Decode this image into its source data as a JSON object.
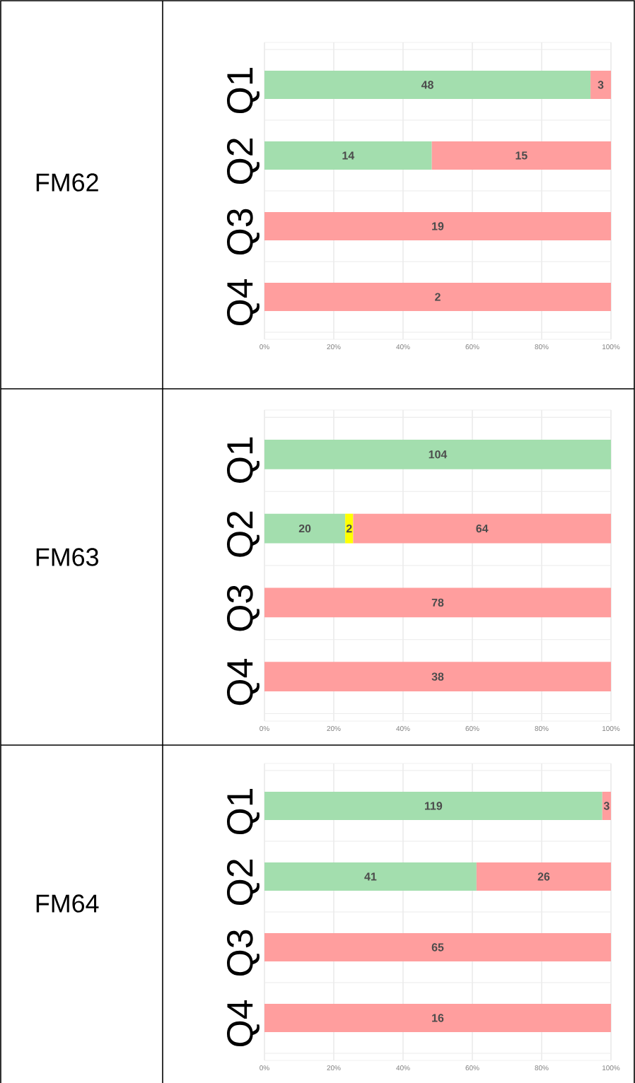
{
  "chart_data": [
    {
      "type": "bar",
      "orientation": "horizontal",
      "stacked": true,
      "title": "FM62",
      "categories": [
        "Q1",
        "Q2",
        "Q3",
        "Q4"
      ],
      "series": [
        {
          "color": "#a3deae",
          "values": [
            94.1,
            48.3,
            null,
            null
          ]
        },
        {
          "color": "#ff9e9e",
          "values": [
            5.9,
            51.7,
            100,
            100
          ]
        }
      ],
      "annotations": [
        "48",
        "3",
        "14",
        "15",
        "19",
        "2"
      ],
      "xlim": [
        0,
        100
      ],
      "xticks": [
        {
          "value": 0,
          "label": "0%"
        },
        {
          "value": 20,
          "label": "20%"
        },
        {
          "value": 40,
          "label": "40%"
        },
        {
          "value": 60,
          "label": "60%"
        },
        {
          "value": 80,
          "label": "80%"
        },
        {
          "value": 100,
          "label": "100%"
        }
      ],
      "grid": true
    },
    {
      "type": "bar",
      "orientation": "horizontal",
      "stacked": true,
      "title": "FM63",
      "categories": [
        "Q1",
        "Q2",
        "Q3",
        "Q4"
      ],
      "series": [
        {
          "color": "#a3deae",
          "values": [
            100,
            23.3,
            null,
            null
          ]
        },
        {
          "color": "#ffff00",
          "values": [
            null,
            2.3,
            null,
            null
          ]
        },
        {
          "color": "#ff9e9e",
          "values": [
            null,
            74.4,
            100,
            100
          ]
        }
      ],
      "annotations": [
        "104",
        "20",
        "2",
        "64",
        "78",
        "38"
      ],
      "xlim": [
        0,
        100
      ],
      "xticks": [
        {
          "value": 0,
          "label": "0%"
        },
        {
          "value": 20,
          "label": "20%"
        },
        {
          "value": 40,
          "label": "40%"
        },
        {
          "value": 60,
          "label": "60%"
        },
        {
          "value": 80,
          "label": "80%"
        },
        {
          "value": 100,
          "label": "100%"
        }
      ],
      "grid": true
    },
    {
      "type": "bar",
      "orientation": "horizontal",
      "stacked": true,
      "title": "FM64",
      "categories": [
        "Q1",
        "Q2",
        "Q3",
        "Q4"
      ],
      "series": [
        {
          "color": "#a3deae",
          "values": [
            97.5,
            61.2,
            null,
            null
          ]
        },
        {
          "color": "#ff9e9e",
          "values": [
            2.5,
            38.8,
            100,
            100
          ]
        }
      ],
      "annotations": [
        "119",
        "3",
        "41",
        "26",
        "65",
        "16"
      ],
      "xlim": [
        0,
        100
      ],
      "xticks": [
        {
          "value": 0,
          "label": "0%"
        },
        {
          "value": 20,
          "label": "20%"
        },
        {
          "value": 40,
          "label": "40%"
        },
        {
          "value": 60,
          "label": "60%"
        },
        {
          "value": 80,
          "label": "80%"
        },
        {
          "value": 100,
          "label": "100%"
        }
      ],
      "grid": true
    }
  ]
}
